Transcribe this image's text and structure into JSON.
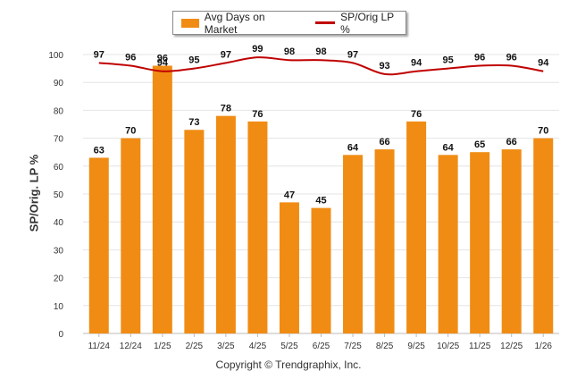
{
  "legend": {
    "bar_label": "Avg Days on Market",
    "line_label": "SP/Orig LP %"
  },
  "copyright": "Copyright © Trendgraphix, Inc.",
  "colors": {
    "bar": "#F08C14",
    "line": "#C00000",
    "grid": "#E4E4E4"
  },
  "chart_data": {
    "type": "bar",
    "categories": [
      "11/24",
      "12/24",
      "1/25",
      "2/25",
      "3/25",
      "4/25",
      "5/25",
      "6/25",
      "7/25",
      "8/25",
      "9/25",
      "10/25",
      "11/25",
      "12/25",
      "1/26"
    ],
    "series": [
      {
        "name": "Avg Days on Market",
        "type": "bar",
        "values": [
          63,
          70,
          96,
          73,
          78,
          76,
          47,
          45,
          64,
          66,
          76,
          64,
          65,
          66,
          70
        ]
      },
      {
        "name": "SP/Orig LP %",
        "type": "line",
        "values": [
          97,
          96,
          94,
          95,
          97,
          99,
          98,
          98,
          97,
          93,
          94,
          95,
          96,
          96,
          94
        ]
      }
    ],
    "xlabel": "",
    "ylabel": "SP/Orig. LP %",
    "ylim": [
      0,
      100
    ],
    "yticks": [
      0,
      10,
      20,
      30,
      40,
      50,
      60,
      70,
      80,
      90,
      100
    ],
    "grid": true,
    "legend_position": "top-center"
  }
}
